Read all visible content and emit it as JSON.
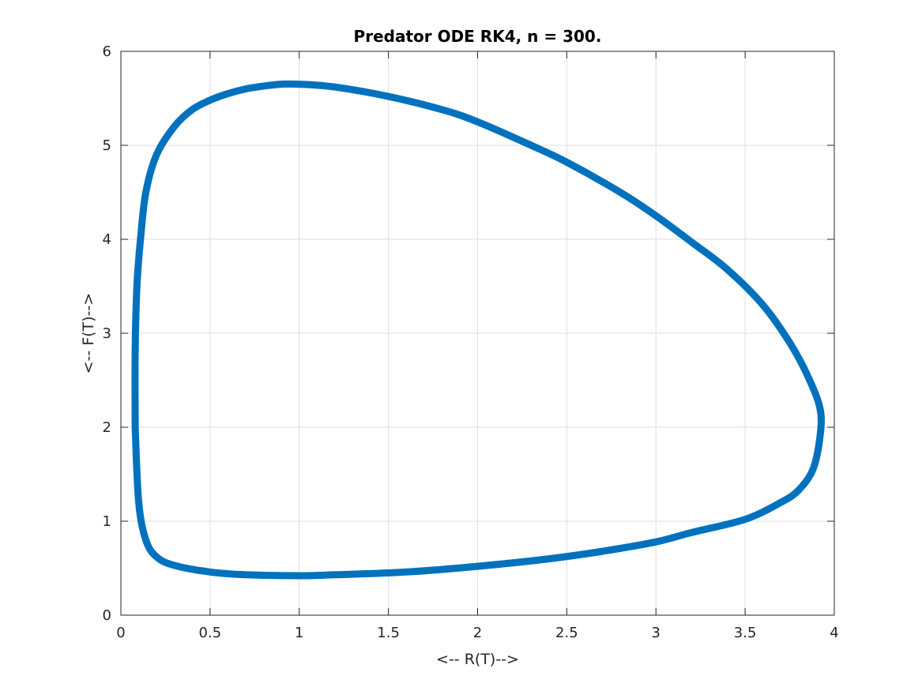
{
  "chart_data": {
    "type": "line",
    "title": "Predator ODE RK4, n = 300.",
    "xlabel": "<-- R(T)-->",
    "ylabel": "<-- F(T)-->",
    "xlim": [
      0,
      4
    ],
    "ylim": [
      0,
      6
    ],
    "xticks": [
      0,
      0.5,
      1,
      1.5,
      2,
      2.5,
      3,
      3.5,
      4
    ],
    "xtick_labels": [
      "0",
      "0.5",
      "1",
      "1.5",
      "2",
      "2.5",
      "3",
      "3.5",
      "4"
    ],
    "yticks": [
      0,
      1,
      2,
      3,
      4,
      5,
      6
    ],
    "ytick_labels": [
      "0",
      "1",
      "2",
      "3",
      "4",
      "5",
      "6"
    ],
    "grid": true,
    "series_color": "#0072BD",
    "series": [
      {
        "x": [
          0.08,
          0.08,
          0.09,
          0.11,
          0.14,
          0.2,
          0.3,
          0.4,
          0.5,
          0.6,
          0.7,
          0.8,
          0.9,
          1.0,
          1.2,
          1.5,
          1.8,
          2.0,
          2.3,
          2.5,
          2.8,
          3.0,
          3.2,
          3.4,
          3.6,
          3.75,
          3.85,
          3.92,
          3.92,
          3.88,
          3.8,
          3.7,
          3.5,
          3.2,
          3.0,
          2.7,
          2.4,
          2.0,
          1.6,
          1.2,
          1.0,
          0.7,
          0.5,
          0.3,
          0.2,
          0.14,
          0.1,
          0.08
        ],
        "y": [
          2.0,
          2.8,
          3.5,
          4.0,
          4.5,
          4.9,
          5.2,
          5.38,
          5.48,
          5.55,
          5.6,
          5.63,
          5.65,
          5.65,
          5.62,
          5.52,
          5.38,
          5.25,
          5.0,
          4.82,
          4.5,
          4.25,
          3.97,
          3.68,
          3.3,
          2.9,
          2.55,
          2.2,
          1.9,
          1.55,
          1.33,
          1.2,
          1.02,
          0.88,
          0.78,
          0.68,
          0.6,
          0.52,
          0.46,
          0.43,
          0.42,
          0.43,
          0.46,
          0.53,
          0.62,
          0.8,
          1.2,
          2.0
        ]
      }
    ]
  }
}
